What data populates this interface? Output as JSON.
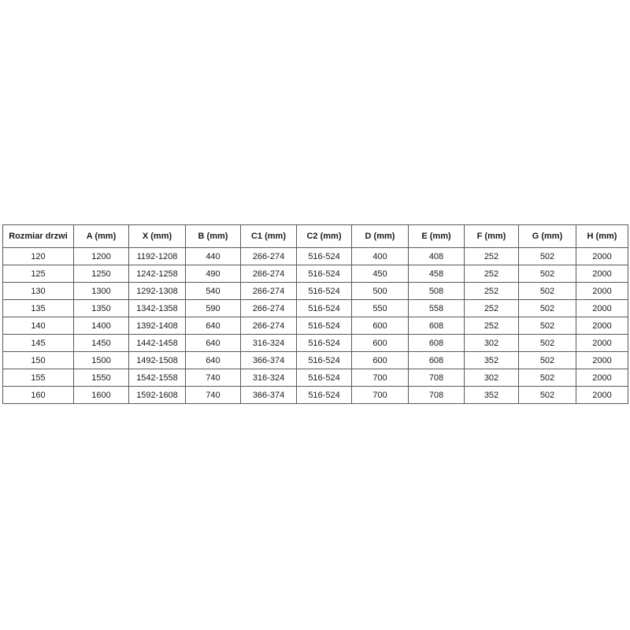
{
  "table": {
    "columns": [
      "Rozmiar drzwi",
      "A (mm)",
      "X (mm)",
      "B (mm)",
      "C1 (mm)",
      "C2 (mm)",
      "D (mm)",
      "E (mm)",
      "F (mm)",
      "G (mm)",
      "H (mm)"
    ],
    "rows": [
      [
        "120",
        "1200",
        "1192-1208",
        "440",
        "266-274",
        "516-524",
        "400",
        "408",
        "252",
        "502",
        "2000"
      ],
      [
        "125",
        "1250",
        "1242-1258",
        "490",
        "266-274",
        "516-524",
        "450",
        "458",
        "252",
        "502",
        "2000"
      ],
      [
        "130",
        "1300",
        "1292-1308",
        "540",
        "266-274",
        "516-524",
        "500",
        "508",
        "252",
        "502",
        "2000"
      ],
      [
        "135",
        "1350",
        "1342-1358",
        "590",
        "266-274",
        "516-524",
        "550",
        "558",
        "252",
        "502",
        "2000"
      ],
      [
        "140",
        "1400",
        "1392-1408",
        "640",
        "266-274",
        "516-524",
        "600",
        "608",
        "252",
        "502",
        "2000"
      ],
      [
        "145",
        "1450",
        "1442-1458",
        "640",
        "316-324",
        "516-524",
        "600",
        "608",
        "302",
        "502",
        "2000"
      ],
      [
        "150",
        "1500",
        "1492-1508",
        "640",
        "366-374",
        "516-524",
        "600",
        "608",
        "352",
        "502",
        "2000"
      ],
      [
        "155",
        "1550",
        "1542-1558",
        "740",
        "316-324",
        "516-524",
        "700",
        "708",
        "302",
        "502",
        "2000"
      ],
      [
        "160",
        "1600",
        "1592-1608",
        "740",
        "366-374",
        "516-524",
        "700",
        "708",
        "352",
        "502",
        "2000"
      ]
    ],
    "colors": {
      "border": "#595959",
      "text": "#1a1a1a",
      "background": "#ffffff"
    }
  }
}
